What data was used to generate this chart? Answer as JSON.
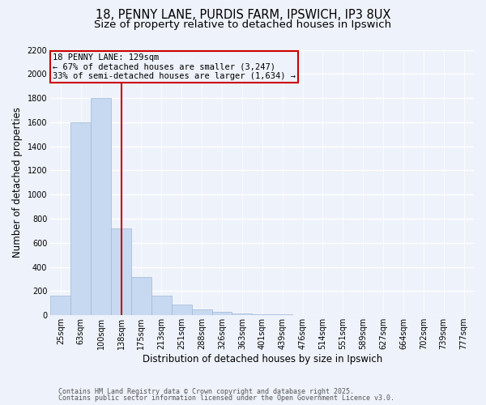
{
  "title_line1": "18, PENNY LANE, PURDIS FARM, IPSWICH, IP3 8UX",
  "title_line2": "Size of property relative to detached houses in Ipswich",
  "xlabel": "Distribution of detached houses by size in Ipswich",
  "ylabel": "Number of detached properties",
  "categories": [
    "25sqm",
    "63sqm",
    "100sqm",
    "138sqm",
    "175sqm",
    "213sqm",
    "251sqm",
    "288sqm",
    "326sqm",
    "363sqm",
    "401sqm",
    "439sqm",
    "476sqm",
    "514sqm",
    "551sqm",
    "589sqm",
    "627sqm",
    "664sqm",
    "702sqm",
    "739sqm",
    "777sqm"
  ],
  "values": [
    160,
    1600,
    1800,
    720,
    320,
    160,
    90,
    50,
    25,
    15,
    10,
    5,
    2,
    0,
    0,
    0,
    0,
    0,
    0,
    0,
    0
  ],
  "bar_color": "#c6d9f0",
  "bar_edge_color": "#a0b8d8",
  "property_line_x": 3.0,
  "property_line_color": "#cc0000",
  "annotation_line1": "18 PENNY LANE: 129sqm",
  "annotation_line2": "← 67% of detached houses are smaller (3,247)",
  "annotation_line3": "33% of semi-detached houses are larger (1,634) →",
  "annotation_box_color": "#cc0000",
  "ylim": [
    0,
    2200
  ],
  "yticks": [
    0,
    200,
    400,
    600,
    800,
    1000,
    1200,
    1400,
    1600,
    1800,
    2000,
    2200
  ],
  "background_color": "#eef2fa",
  "grid_color": "#ffffff",
  "footer_line1": "Contains HM Land Registry data © Crown copyright and database right 2025.",
  "footer_line2": "Contains public sector information licensed under the Open Government Licence v3.0.",
  "title_fontsize": 10.5,
  "subtitle_fontsize": 9.5,
  "axis_label_fontsize": 8.5,
  "tick_fontsize": 7,
  "annotation_fontsize": 7.5,
  "footer_fontsize": 6
}
